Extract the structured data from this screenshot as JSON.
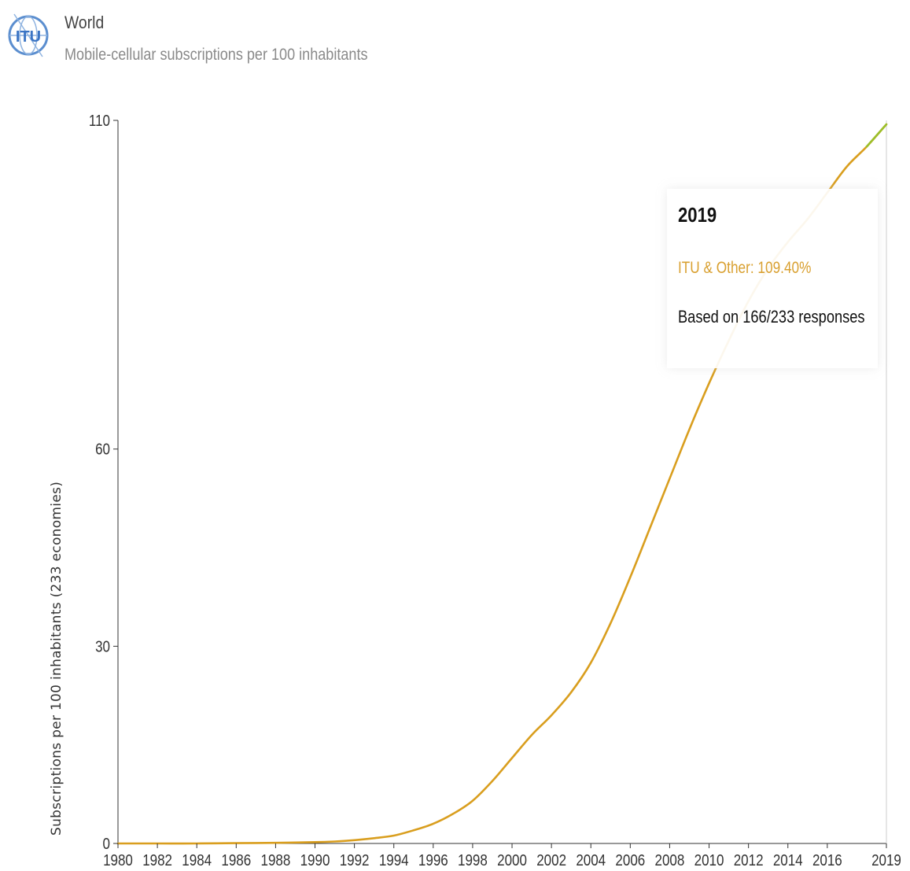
{
  "header": {
    "title": "World",
    "subtitle": "Mobile-cellular subscriptions per 100 inhabitants",
    "logo_icon": "itu-logo-icon",
    "logo_text": "ITU"
  },
  "colors": {
    "series": "#d99e1e",
    "series_end": "#9bbf2a",
    "axis": "#333333",
    "tooltip_series": "#d9a030"
  },
  "tooltip": {
    "year": "2019",
    "series_label": "ITU & Other: 109.40%",
    "note": "Based on 166/233 responses"
  },
  "chart_data": {
    "type": "line",
    "title": "Mobile-cellular subscriptions per 100 inhabitants",
    "xlabel": "",
    "ylabel": "Subscriptions per 100 inhabitants (233 economies)",
    "xlim": [
      1980,
      2019
    ],
    "ylim": [
      0,
      110
    ],
    "yticks": [
      0,
      30,
      60,
      110
    ],
    "xticks": [
      "1980",
      "1982",
      "1984",
      "1986",
      "1988",
      "1990",
      "1992",
      "1994",
      "1996",
      "1998",
      "2000",
      "2002",
      "2004",
      "2006",
      "2008",
      "2010",
      "2012",
      "2014",
      "2016",
      "2019"
    ],
    "grid": false,
    "series": [
      {
        "name": "ITU & Other",
        "x": [
          1980,
          1982,
          1984,
          1986,
          1988,
          1990,
          1991,
          1992,
          1993,
          1994,
          1995,
          1996,
          1997,
          1998,
          1999,
          2000,
          2001,
          2002,
          2003,
          2004,
          2005,
          2006,
          2007,
          2008,
          2009,
          2010,
          2011,
          2012,
          2013,
          2014,
          2015,
          2016,
          2017,
          2018,
          2019
        ],
        "values": [
          0.0,
          0.0,
          0.0,
          0.05,
          0.1,
          0.2,
          0.3,
          0.5,
          0.8,
          1.2,
          2.0,
          3.0,
          4.5,
          6.5,
          9.5,
          13.0,
          16.5,
          19.5,
          23.0,
          27.5,
          33.5,
          40.5,
          48.0,
          55.5,
          63.0,
          70.0,
          76.5,
          82.5,
          87.5,
          91.5,
          95.0,
          99.0,
          103.0,
          106.0,
          109.4
        ]
      }
    ]
  }
}
